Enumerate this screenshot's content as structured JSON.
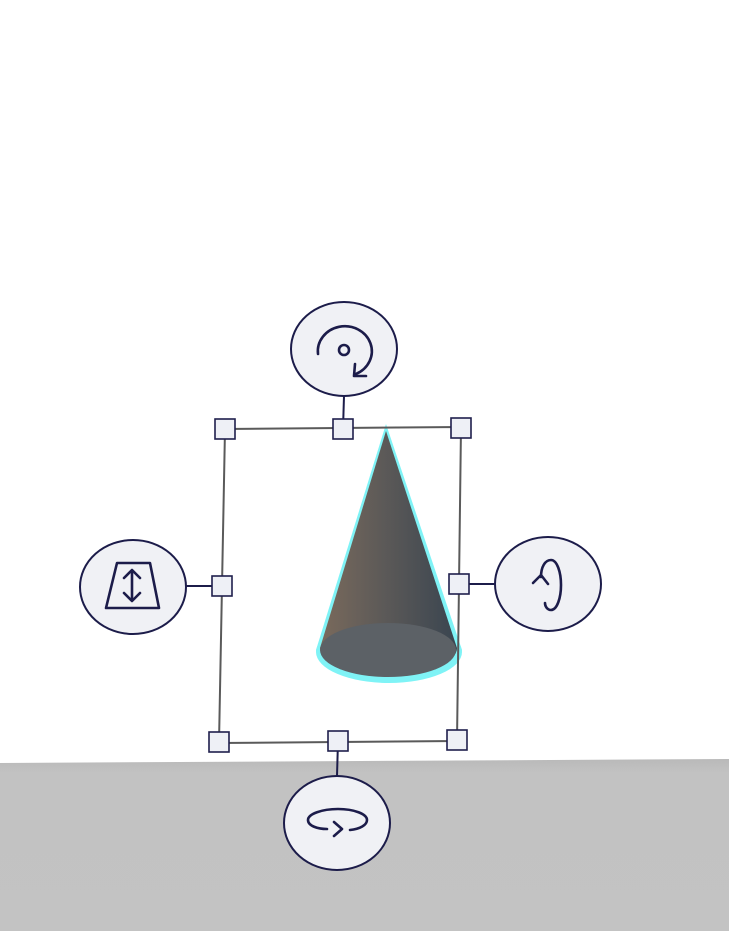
{
  "scene": {
    "background_color": "#ffffff",
    "floor_color": "#c2c2c2",
    "selected_object": {
      "kind": "cone",
      "highlight_color": "#7ff3f6",
      "body_color_left": "#6a6158",
      "body_color_right": "#3e4852",
      "base_color": "#5a6066"
    }
  },
  "gizmo": {
    "frame_color": "#5a5a5a",
    "handle_fill": "#eef0f6",
    "handle_stroke": "#1f1f4d",
    "button_fill": "#f0f1f5",
    "button_stroke": "#1c1c4a",
    "buttons": [
      {
        "name": "rotate-z-button",
        "icon": "rotate-around-point-icon"
      },
      {
        "name": "taper-button",
        "icon": "taper-vertical-icon"
      },
      {
        "name": "rotate-y-button",
        "icon": "rotate-around-vertical-axis-icon"
      },
      {
        "name": "rotate-x-button",
        "icon": "rotate-around-horizontal-axis-icon"
      }
    ],
    "handles": [
      "handle-top-left",
      "handle-top-middle",
      "handle-top-right",
      "handle-middle-left",
      "handle-middle-right",
      "handle-bottom-left",
      "handle-bottom-middle",
      "handle-bottom-right"
    ]
  }
}
